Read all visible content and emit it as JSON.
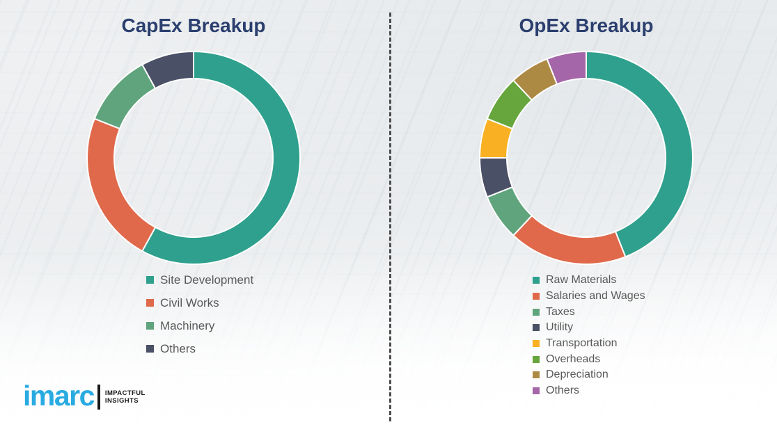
{
  "chart_data": [
    {
      "type": "pie",
      "variant": "donut",
      "title": "CapEx Breakup",
      "labels": [
        "Site Development",
        "Civil Works",
        "Machinery",
        "Others"
      ],
      "values": [
        58,
        23,
        11,
        8
      ],
      "unit": "percent-of-ring (estimated from arc angles, no numeric labels shown)",
      "colors": [
        "#2fa08d",
        "#e0694b",
        "#5fa47c",
        "#4a5066"
      ],
      "start_angle_deg": 0,
      "clockwise": true,
      "legend_position": "below-chart",
      "grid": false
    },
    {
      "type": "pie",
      "variant": "donut",
      "title": "OpEx Breakup",
      "labels": [
        "Raw Materials",
        "Salaries and Wages",
        "Taxes",
        "Utility",
        "Transportation",
        "Overheads",
        "Depreciation",
        "Others"
      ],
      "values": [
        44,
        18,
        7,
        6,
        6,
        7,
        6,
        6
      ],
      "unit": "percent-of-ring (estimated from arc angles, no numeric labels shown)",
      "colors": [
        "#2fa08d",
        "#e0694b",
        "#5fa47c",
        "#4a5066",
        "#f9b123",
        "#66a63d",
        "#ad8a44",
        "#a466a8"
      ],
      "start_angle_deg": 0,
      "clockwise": true,
      "legend_position": "below-chart",
      "grid": false
    }
  ],
  "divider": {
    "style": "vertical-dashed",
    "color": "#4d4d4d"
  },
  "logo": {
    "brand": "imarc",
    "tagline": [
      "IMPACTFUL",
      "INSIGHTS"
    ],
    "brand_color": "#29abe2"
  },
  "theme": {
    "title_color": "#2b3f6e",
    "legend_text_color": "#595959",
    "background": "#f1f2f4"
  }
}
